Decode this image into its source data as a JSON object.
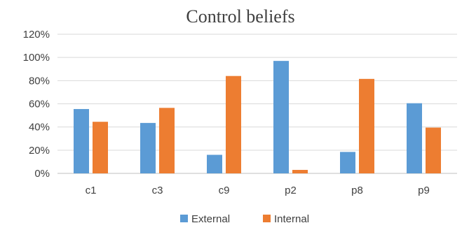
{
  "chart_data": {
    "type": "bar",
    "title": "Control beliefs",
    "categories": [
      "c1",
      "c3",
      "c9",
      "p2",
      "p8",
      "p9"
    ],
    "series": [
      {
        "name": "External",
        "color": "#5b9bd5",
        "values": [
          55.5,
          43.5,
          16,
          97,
          18.5,
          60.5
        ]
      },
      {
        "name": "Internal",
        "color": "#ed7d31",
        "values": [
          44.5,
          56.5,
          84,
          3,
          81.5,
          39.5
        ]
      }
    ],
    "yticks": [
      "0%",
      "20%",
      "40%",
      "60%",
      "80%",
      "100%",
      "120%"
    ],
    "ylim": [
      0,
      120
    ],
    "y_unit": "%",
    "grid": true,
    "legend_position": "bottom-center"
  }
}
